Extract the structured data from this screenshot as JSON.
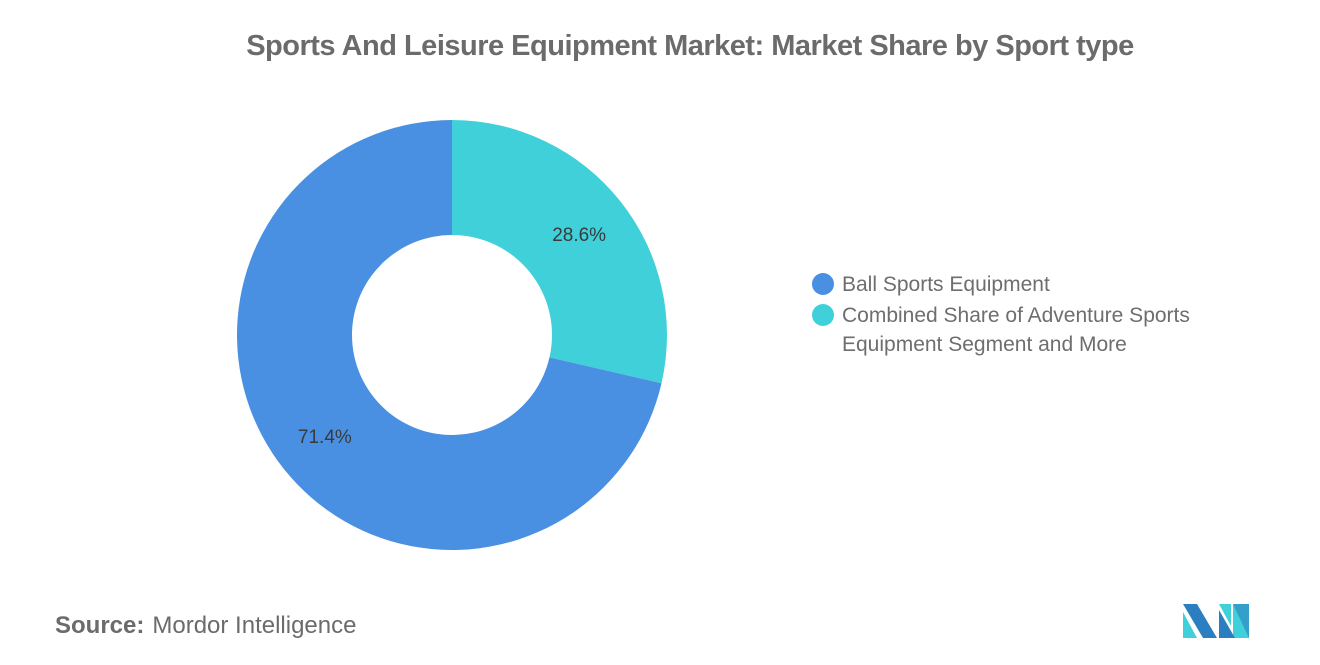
{
  "chart_data": {
    "type": "pie",
    "donut": true,
    "title": "Sports And Leisure Equipment Market: Market Share by Sport type",
    "slices": [
      {
        "label": "Combined Share of Adventure Sports Equipment Segment and More",
        "value": 28.6,
        "display": "28.6%",
        "color": "#40d0da"
      },
      {
        "label": "Ball Sports Equipment",
        "value": 71.4,
        "display": "71.4%",
        "color": "#4a90e2"
      }
    ],
    "legend": {
      "position": "right",
      "entries": [
        {
          "label": "Ball Sports Equipment",
          "color": "#4a90e2"
        },
        {
          "label": "Combined Share of Adventure Sports Equipment Segment and More",
          "color": "#40d0da"
        }
      ]
    }
  },
  "source": {
    "label": "Source:",
    "value": "Mordor Intelligence"
  },
  "logo": {
    "colors": [
      "#2b7fc0",
      "#40d0da"
    ]
  }
}
